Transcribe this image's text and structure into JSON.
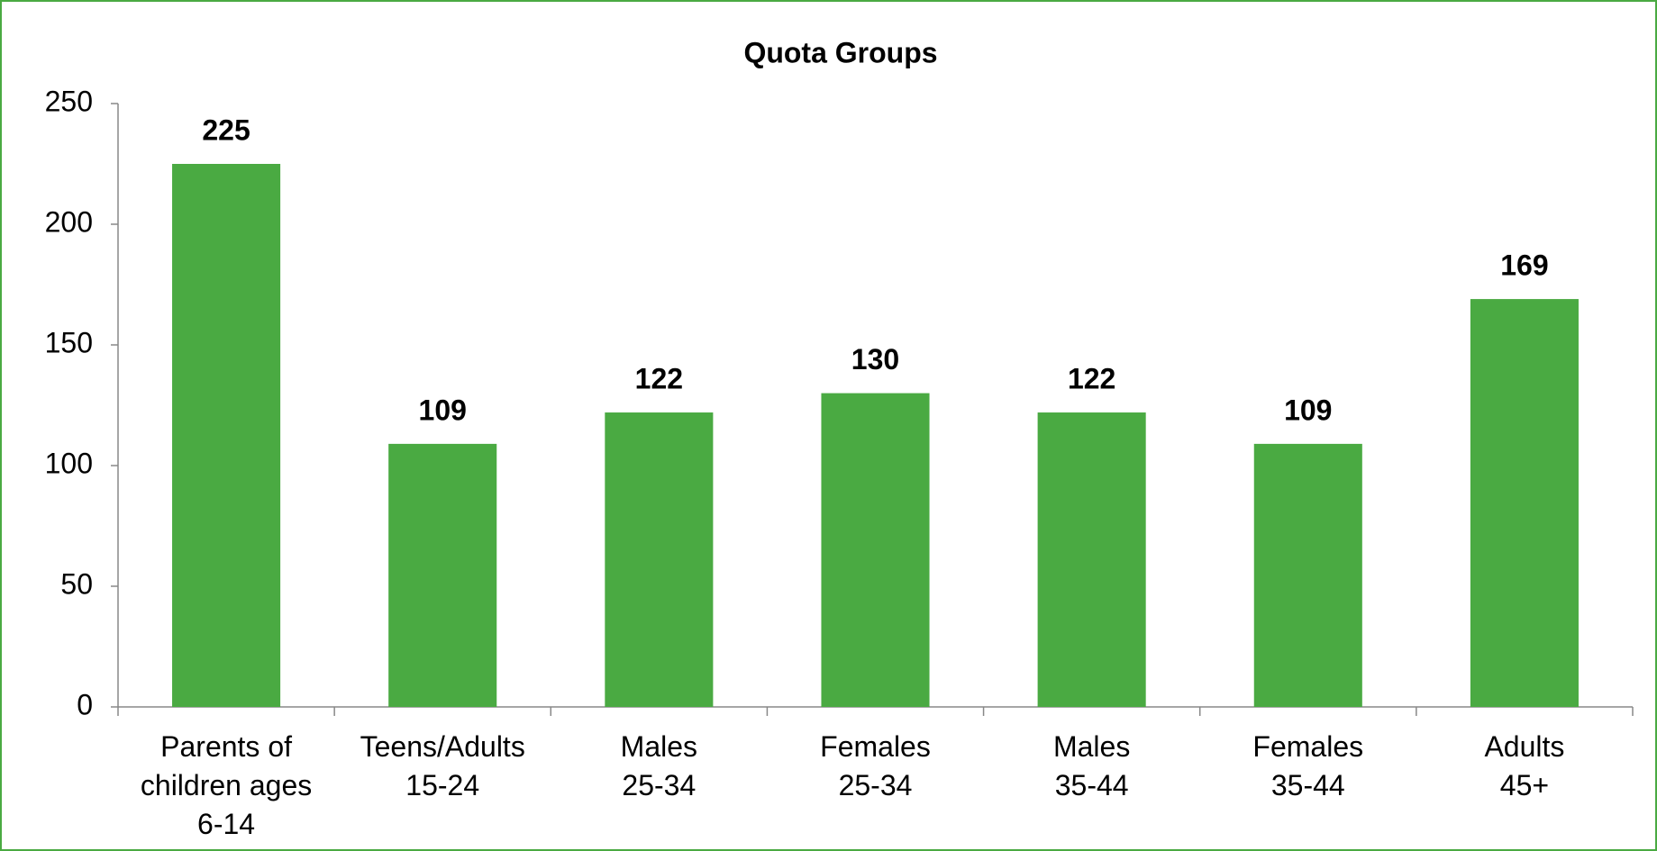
{
  "chart_data": {
    "type": "bar",
    "title": "Quota Groups",
    "categories": [
      "Parents of\nchildren ages\n6-14",
      "Teens/Adults\n15-24",
      "Males\n25-34",
      "Females\n25-34",
      "Males\n35-44",
      "Females\n35-44",
      "Adults\n45+"
    ],
    "values": [
      225,
      109,
      122,
      130,
      122,
      109,
      169
    ],
    "color": "#4aaa42",
    "ylim": [
      0,
      250
    ],
    "yticks": [
      0,
      50,
      100,
      150,
      200,
      250
    ],
    "grid": false
  }
}
